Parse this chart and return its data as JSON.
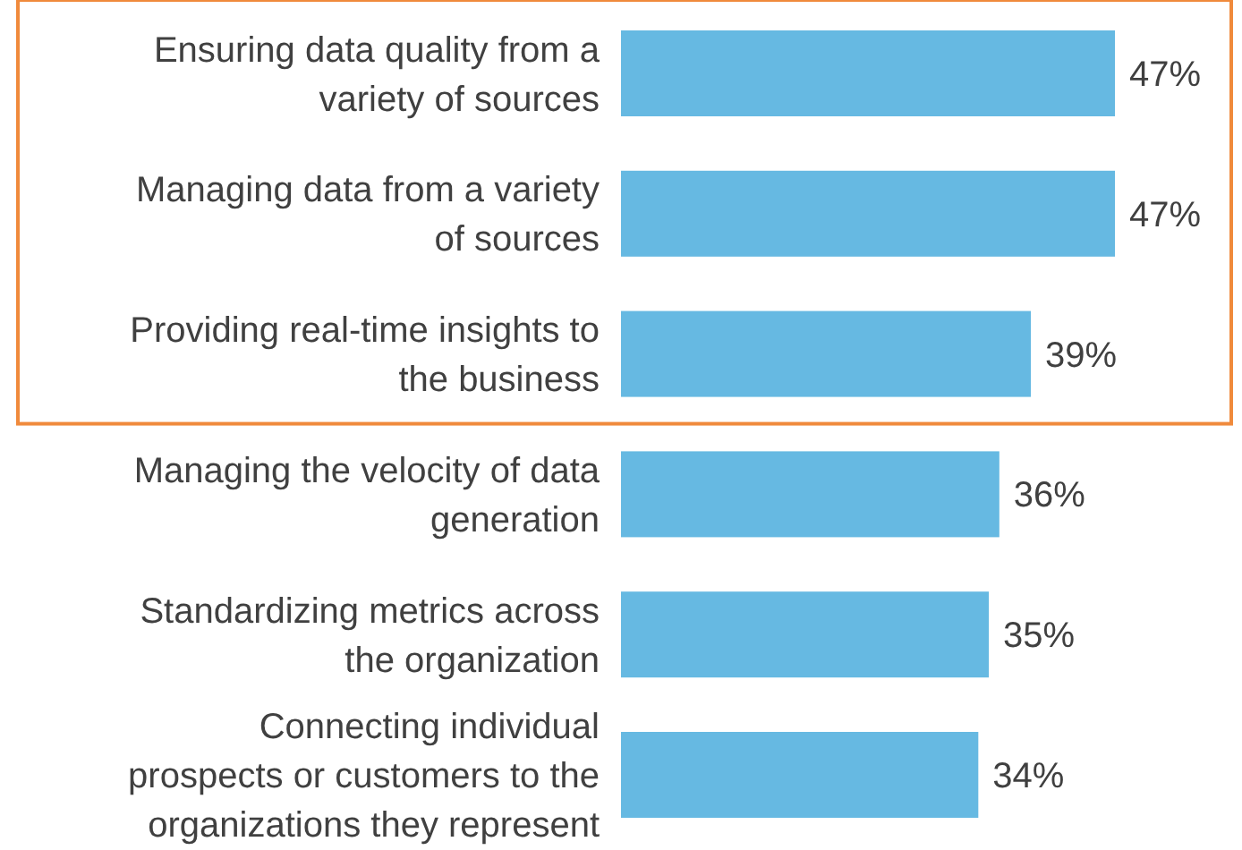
{
  "chart_data": {
    "type": "bar",
    "orientation": "horizontal",
    "categories": [
      "Ensuring data quality from a\nvariety of sources",
      "Managing data from a variety\nof sources",
      "Providing real-time insights to\nthe business",
      "Managing the velocity of data\ngeneration",
      "Standardizing metrics across\nthe organization",
      "Connecting individual\nprospects or customers to the\norganizations they represent"
    ],
    "values": [
      47,
      47,
      39,
      36,
      35,
      34
    ],
    "value_labels": [
      "47%",
      "47%",
      "39%",
      "36%",
      "35%",
      "34%"
    ],
    "color": "#66b9e2"
  }
}
